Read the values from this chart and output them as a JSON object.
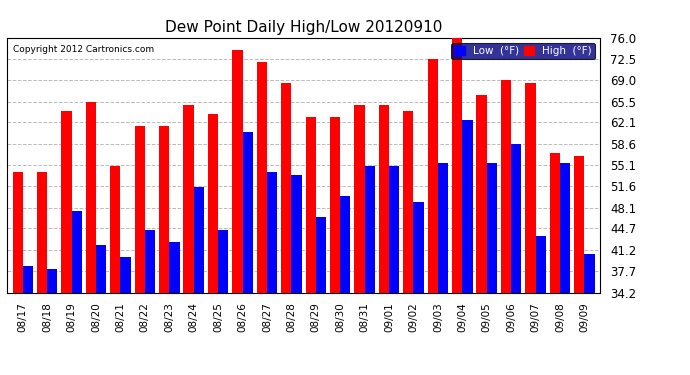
{
  "title": "Dew Point Daily High/Low 20120910",
  "copyright": "Copyright 2012 Cartronics.com",
  "dates": [
    "08/17",
    "08/18",
    "08/19",
    "08/20",
    "08/21",
    "08/22",
    "08/23",
    "08/24",
    "08/25",
    "08/26",
    "08/27",
    "08/28",
    "08/29",
    "08/30",
    "08/31",
    "09/01",
    "09/02",
    "09/03",
    "09/04",
    "09/05",
    "09/06",
    "09/07",
    "09/08",
    "09/09"
  ],
  "high_values": [
    54.0,
    54.0,
    64.0,
    65.5,
    55.0,
    61.5,
    61.5,
    65.0,
    63.5,
    74.0,
    72.0,
    68.5,
    63.0,
    63.0,
    65.0,
    65.0,
    64.0,
    72.5,
    76.5,
    66.5,
    69.0,
    68.5,
    57.0,
    56.5
  ],
  "low_values": [
    38.5,
    38.0,
    47.5,
    42.0,
    40.0,
    44.5,
    42.5,
    51.5,
    44.5,
    60.5,
    54.0,
    53.5,
    46.5,
    50.0,
    55.0,
    55.0,
    49.0,
    55.5,
    62.5,
    55.5,
    58.5,
    43.5,
    55.5,
    40.5
  ],
  "high_color": "#ff0000",
  "low_color": "#0000ff",
  "bg_color": "#ffffff",
  "plot_bg_color": "#ffffff",
  "grid_color": "#bbbbbb",
  "yticks": [
    34.2,
    37.7,
    41.2,
    44.7,
    48.1,
    51.6,
    55.1,
    58.6,
    62.1,
    65.5,
    69.0,
    72.5,
    76.0
  ],
  "ymin": 34.2,
  "ymax": 76.0,
  "bar_width": 0.42,
  "legend_low_label": "Low  (°F)",
  "legend_high_label": "High  (°F)"
}
